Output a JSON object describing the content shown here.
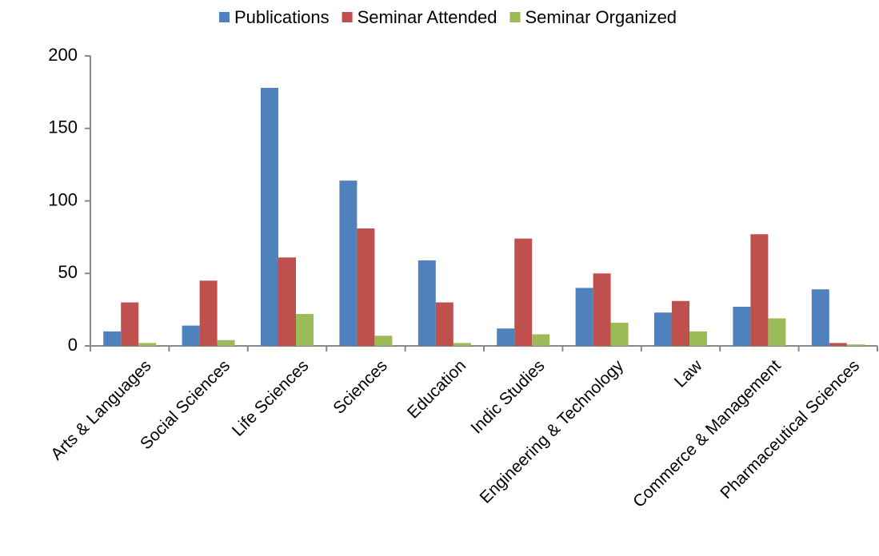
{
  "chart_data": {
    "type": "bar",
    "categories": [
      "Arts & Languages",
      "Social Sciences",
      "Life Sciences",
      "Sciences",
      "Education",
      "Indic Studies",
      "Engineering & Technology",
      "Law",
      "Commerce & Management",
      "Pharmaceutical Sciences"
    ],
    "series": [
      {
        "name": "Publications",
        "color": "#4f81bd",
        "values": [
          10,
          14,
          178,
          114,
          59,
          12,
          40,
          23,
          27,
          39
        ]
      },
      {
        "name": "Seminar Attended",
        "color": "#c0504d",
        "values": [
          30,
          45,
          61,
          81,
          30,
          74,
          50,
          31,
          77,
          2
        ]
      },
      {
        "name": "Seminar Organized",
        "color": "#9bbb59",
        "values": [
          2,
          4,
          22,
          7,
          2,
          8,
          16,
          10,
          19,
          1
        ]
      }
    ],
    "ylim": [
      0,
      200
    ],
    "yticks": [
      0,
      50,
      100,
      150,
      200
    ],
    "grid": false,
    "legend": "top"
  }
}
